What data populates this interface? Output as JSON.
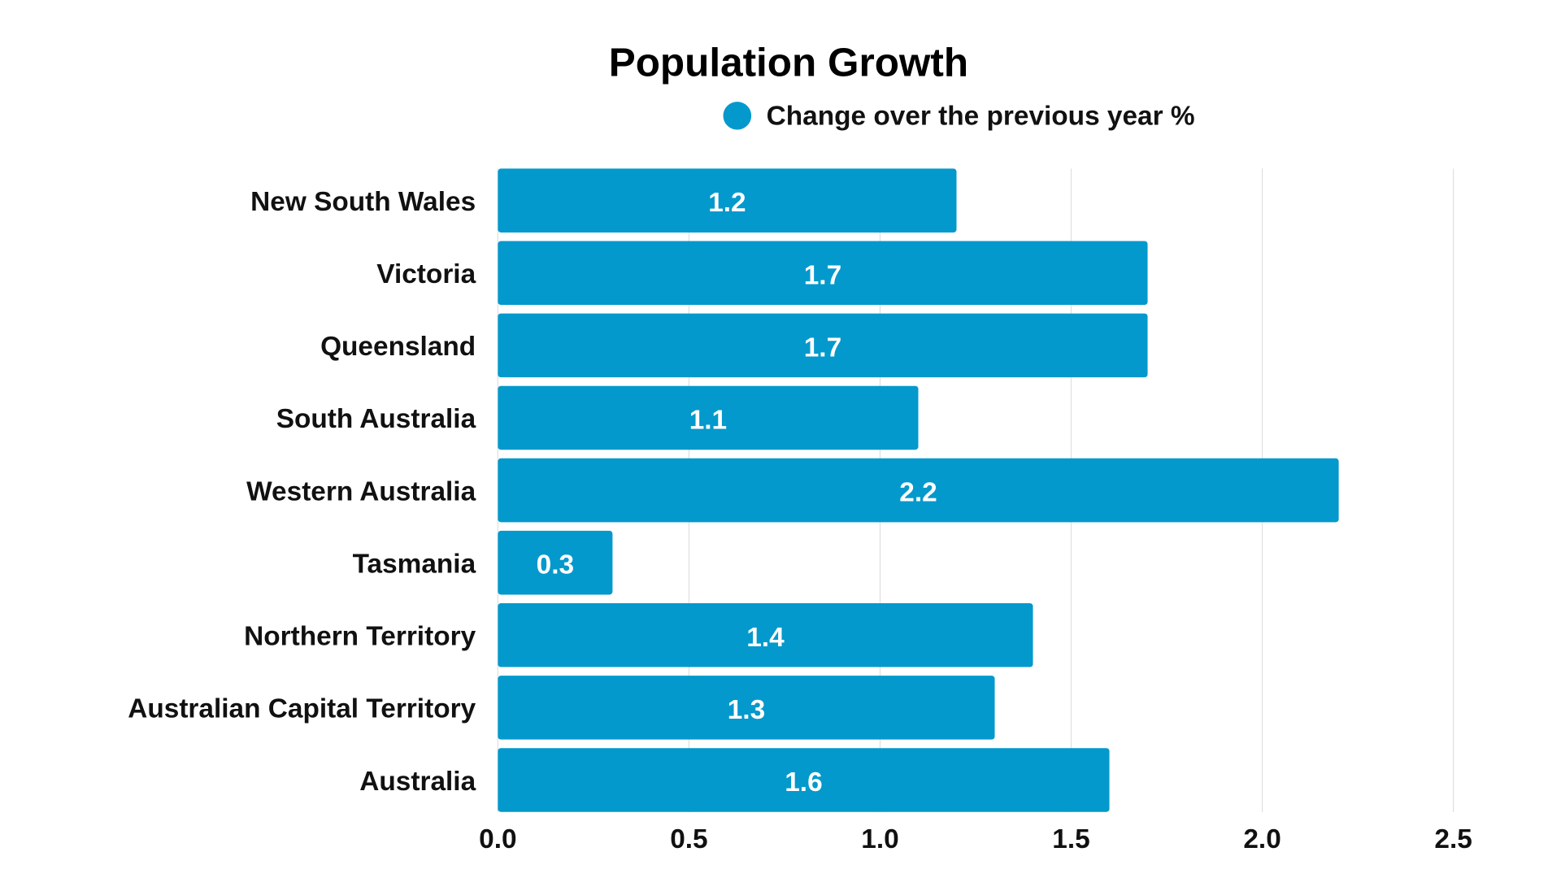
{
  "chart_data": {
    "type": "bar",
    "orientation": "horizontal",
    "title": "Population Growth",
    "legend": [
      "Change over the previous year %"
    ],
    "legend_placement": "top-center",
    "categories": [
      "New South Wales",
      "Victoria",
      "Queensland",
      "South Australia",
      "Western Australia",
      "Tasmania",
      "Northern Territory",
      "Australian Capital Territory",
      "Australia"
    ],
    "series": [
      {
        "name": "Change over the previous year %",
        "values": [
          1.2,
          1.7,
          1.7,
          1.1,
          2.2,
          0.3,
          1.4,
          1.3,
          1.6
        ]
      }
    ],
    "value_labels": [
      "1.2",
      "1.7",
      "1.7",
      "1.1",
      "2.2",
      "0.3",
      "1.4",
      "1.3",
      "1.6"
    ],
    "xlim": [
      0,
      2.5
    ],
    "xticks": [
      "0.0",
      "0.5",
      "1.0",
      "1.5",
      "2.0",
      "2.5"
    ],
    "grid": true,
    "colors": {
      "bar": "#0399cc",
      "grid": "#e0e0e0"
    }
  }
}
